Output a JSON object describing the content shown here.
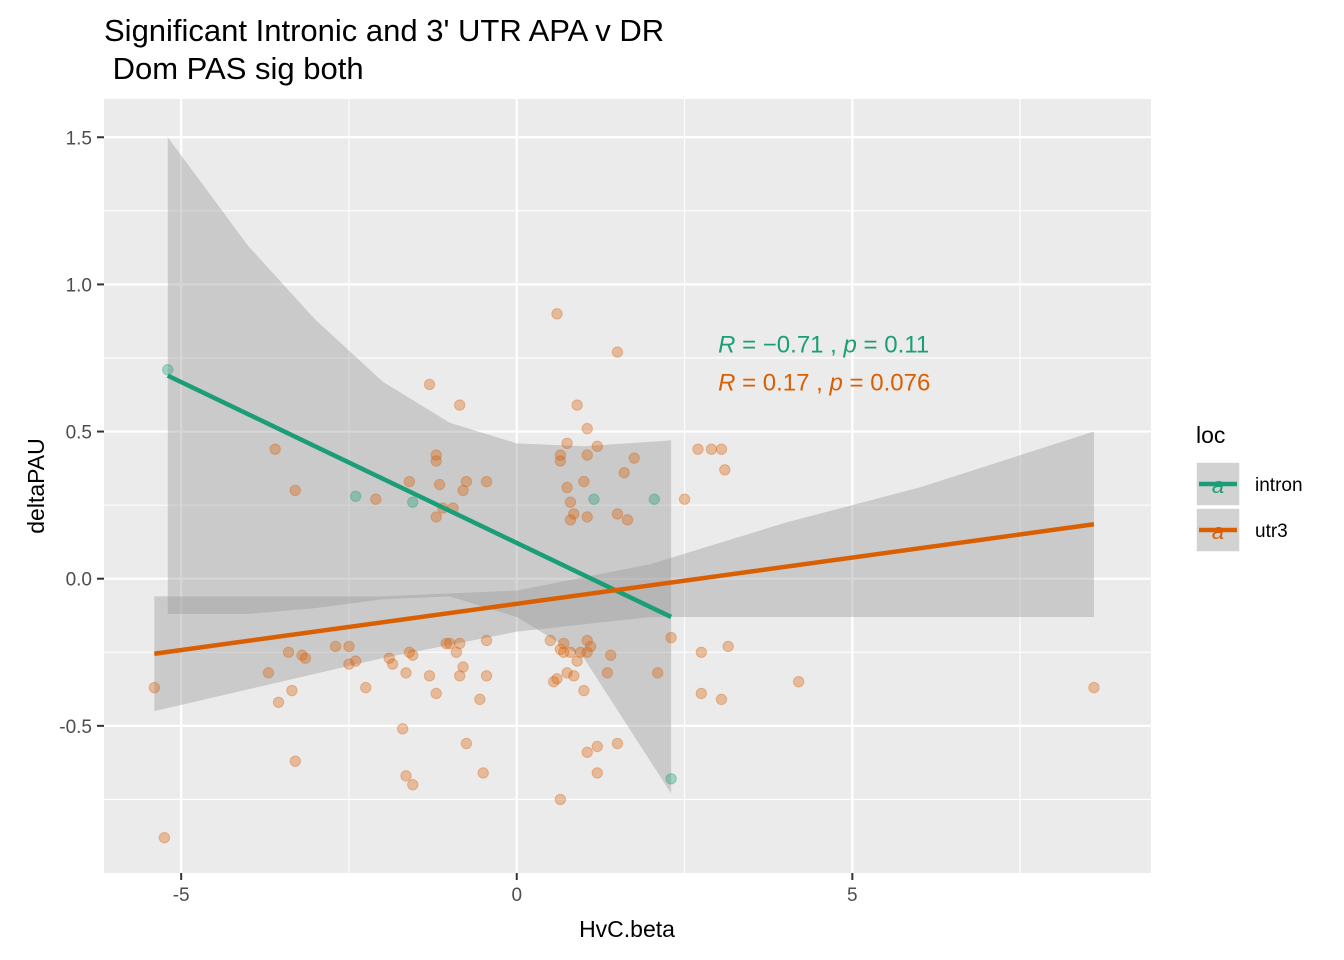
{
  "chart_data": {
    "type": "scatter",
    "title": "Significant Intronic and 3' UTR APA v DR",
    "subtitle": " Dom PAS sig both",
    "xlabel": "HvC.beta",
    "ylabel": "deltaPAU",
    "xlim": [
      -6.15,
      9.45
    ],
    "ylim": [
      -1.0,
      1.63
    ],
    "x_ticks": [
      -5,
      0,
      5
    ],
    "x_tick_labels": [
      "-5",
      "0",
      "5"
    ],
    "y_ticks": [
      -0.5,
      0.0,
      0.5,
      1.0,
      1.5
    ],
    "y_tick_labels": [
      "-0.5",
      "0.0",
      "0.5",
      "1.0",
      "1.5"
    ],
    "grid": true,
    "legend": {
      "title": "loc",
      "position": "right",
      "glyph": "a",
      "entries": [
        {
          "label": "intron",
          "color": "#1b9e77"
        },
        {
          "label": "utr3",
          "color": "#d95f02"
        }
      ]
    },
    "annotations": [
      {
        "series": "intron",
        "r_label": "R",
        "r_value": " = −0.71",
        "sep": " , ",
        "p_label": "p",
        "p_value": " = 0.11",
        "x": 3.0,
        "y": 0.8
      },
      {
        "series": "utr3",
        "r_label": "R",
        "r_value": " = 0.17",
        "sep": " , ",
        "p_label": "p",
        "p_value": " = 0.076",
        "x": 3.0,
        "y": 0.67
      }
    ],
    "series": [
      {
        "name": "intron",
        "color": "#1b9e77",
        "points": [
          [
            -5.2,
            0.71
          ],
          [
            -2.4,
            0.28
          ],
          [
            -1.55,
            0.26
          ],
          [
            1.15,
            0.27
          ],
          [
            2.05,
            0.27
          ],
          [
            2.3,
            -0.68
          ]
        ],
        "fit": {
          "x": [
            -5.2,
            2.3
          ],
          "y": [
            0.69,
            -0.13
          ]
        },
        "ribbon": {
          "x": [
            -5.2,
            -4.0,
            -3.0,
            -2.0,
            -1.0,
            0.0,
            1.0,
            2.3
          ],
          "upper": [
            1.5,
            1.13,
            0.88,
            0.67,
            0.53,
            0.46,
            0.45,
            0.47
          ],
          "lower": [
            -0.12,
            -0.12,
            -0.1,
            -0.07,
            -0.06,
            -0.13,
            -0.27,
            -0.73
          ]
        }
      },
      {
        "name": "utr3",
        "color": "#d95f02",
        "points": [
          [
            -5.4,
            -0.37
          ],
          [
            -5.25,
            -0.88
          ],
          [
            -3.7,
            -0.32
          ],
          [
            -3.6,
            0.44
          ],
          [
            -3.55,
            -0.42
          ],
          [
            -3.4,
            -0.25
          ],
          [
            -3.35,
            -0.38
          ],
          [
            -3.3,
            -0.62
          ],
          [
            -3.3,
            0.3
          ],
          [
            -3.2,
            -0.26
          ],
          [
            -3.15,
            -0.27
          ],
          [
            -2.7,
            -0.23
          ],
          [
            -2.5,
            -0.23
          ],
          [
            -2.5,
            -0.29
          ],
          [
            -2.4,
            -0.28
          ],
          [
            -2.25,
            -0.37
          ],
          [
            -2.1,
            0.27
          ],
          [
            -1.9,
            -0.27
          ],
          [
            -1.85,
            -0.29
          ],
          [
            -1.7,
            -0.51
          ],
          [
            -1.65,
            -0.32
          ],
          [
            -1.65,
            -0.67
          ],
          [
            -1.6,
            -0.25
          ],
          [
            -1.55,
            -0.26
          ],
          [
            -1.55,
            -0.7
          ],
          [
            -1.6,
            0.33
          ],
          [
            -1.3,
            0.66
          ],
          [
            -1.3,
            -0.33
          ],
          [
            -1.2,
            0.42
          ],
          [
            -1.2,
            0.4
          ],
          [
            -1.2,
            -0.39
          ],
          [
            -1.2,
            0.21
          ],
          [
            -1.15,
            0.32
          ],
          [
            -1.1,
            0.24
          ],
          [
            -1.05,
            -0.22
          ],
          [
            -1.0,
            -0.22
          ],
          [
            -0.95,
            0.24
          ],
          [
            -0.9,
            -0.25
          ],
          [
            -0.85,
            0.59
          ],
          [
            -0.85,
            -0.33
          ],
          [
            -0.85,
            -0.22
          ],
          [
            -0.8,
            -0.3
          ],
          [
            -0.8,
            0.3
          ],
          [
            -0.75,
            0.33
          ],
          [
            -0.75,
            -0.56
          ],
          [
            -0.55,
            -0.41
          ],
          [
            -0.5,
            -0.66
          ],
          [
            -0.45,
            0.33
          ],
          [
            -0.45,
            -0.21
          ],
          [
            -0.45,
            -0.33
          ],
          [
            0.5,
            -0.21
          ],
          [
            0.55,
            -0.35
          ],
          [
            0.6,
            -0.34
          ],
          [
            0.6,
            0.9
          ],
          [
            0.65,
            -0.24
          ],
          [
            0.65,
            0.4
          ],
          [
            0.65,
            0.42
          ],
          [
            0.65,
            -0.75
          ],
          [
            0.7,
            -0.25
          ],
          [
            0.7,
            -0.22
          ],
          [
            0.75,
            0.31
          ],
          [
            0.75,
            -0.32
          ],
          [
            0.75,
            0.46
          ],
          [
            0.8,
            0.26
          ],
          [
            0.8,
            -0.25
          ],
          [
            0.8,
            0.2
          ],
          [
            0.85,
            0.22
          ],
          [
            0.85,
            -0.33
          ],
          [
            0.9,
            -0.28
          ],
          [
            0.9,
            0.59
          ],
          [
            0.95,
            -0.25
          ],
          [
            1.0,
            -0.38
          ],
          [
            1.0,
            0.33
          ],
          [
            1.05,
            0.51
          ],
          [
            1.05,
            0.42
          ],
          [
            1.05,
            -0.21
          ],
          [
            1.05,
            0.21
          ],
          [
            1.05,
            -0.25
          ],
          [
            1.05,
            -0.59
          ],
          [
            1.1,
            -0.23
          ],
          [
            1.2,
            0.45
          ],
          [
            1.2,
            -0.57
          ],
          [
            1.2,
            -0.66
          ],
          [
            1.35,
            -0.32
          ],
          [
            1.4,
            -0.26
          ],
          [
            1.5,
            0.77
          ],
          [
            1.5,
            0.22
          ],
          [
            1.5,
            -0.56
          ],
          [
            1.6,
            0.36
          ],
          [
            1.65,
            0.2
          ],
          [
            1.75,
            0.41
          ],
          [
            2.1,
            -0.32
          ],
          [
            2.3,
            -0.2
          ],
          [
            2.5,
            0.27
          ],
          [
            2.7,
            0.44
          ],
          [
            2.75,
            -0.25
          ],
          [
            2.75,
            -0.39
          ],
          [
            2.9,
            0.44
          ],
          [
            3.05,
            0.44
          ],
          [
            3.05,
            -0.41
          ],
          [
            3.1,
            0.37
          ],
          [
            3.15,
            -0.23
          ],
          [
            4.2,
            -0.35
          ],
          [
            8.6,
            -0.37
          ]
        ],
        "fit": {
          "x": [
            -5.4,
            8.6
          ],
          "y": [
            -0.255,
            0.185
          ]
        },
        "ribbon": {
          "x": [
            -5.4,
            -2.0,
            0.0,
            2.0,
            4.0,
            6.0,
            8.6
          ],
          "upper": [
            -0.06,
            -0.06,
            -0.04,
            0.05,
            0.19,
            0.31,
            0.5
          ],
          "lower": [
            -0.45,
            -0.27,
            -0.18,
            -0.13,
            -0.13,
            -0.13,
            -0.13
          ]
        }
      }
    ]
  }
}
